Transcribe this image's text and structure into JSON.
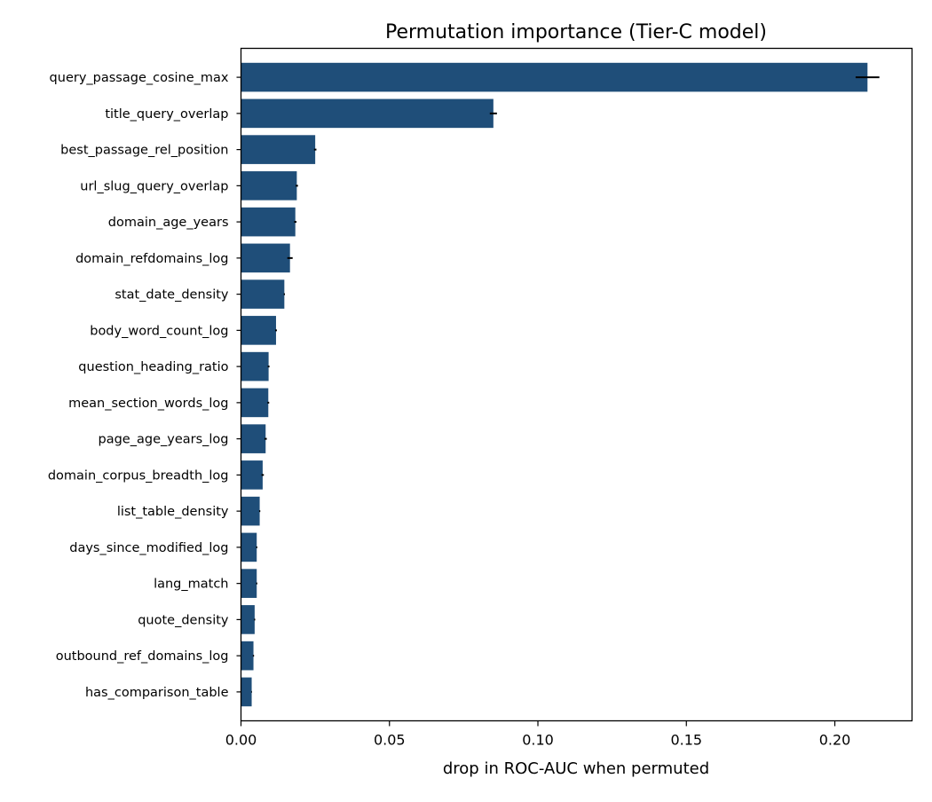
{
  "chart_data": {
    "type": "bar",
    "orientation": "horizontal",
    "title": "Permutation importance (Tier-C model)",
    "xlabel": "drop in ROC-AUC when permuted",
    "ylabel": "",
    "xlim": [
      0,
      0.226
    ],
    "xticks": [
      0.0,
      0.05,
      0.1,
      0.15,
      0.2
    ],
    "xtick_labels": [
      "0.00",
      "0.05",
      "0.10",
      "0.15",
      "0.20"
    ],
    "grid": false,
    "legend": "none",
    "bar_color": "#1f4e79",
    "error_color": "#000000",
    "categories": [
      "query_passage_cosine_max",
      "title_query_overlap",
      "best_passage_rel_position",
      "url_slug_query_overlap",
      "domain_age_years",
      "domain_refdomains_log",
      "stat_date_density",
      "body_word_count_log",
      "question_heading_ratio",
      "mean_section_words_log",
      "page_age_years_log",
      "domain_corpus_breadth_log",
      "list_table_density",
      "days_since_modified_log",
      "lang_match",
      "quote_density",
      "outbound_ref_domains_log",
      "has_comparison_table"
    ],
    "values": [
      0.211,
      0.085,
      0.025,
      0.0188,
      0.0183,
      0.0165,
      0.0146,
      0.0118,
      0.0093,
      0.0092,
      0.0083,
      0.0073,
      0.0063,
      0.0053,
      0.0053,
      0.0046,
      0.0042,
      0.0036
    ],
    "errors": [
      0.004,
      0.0012,
      0.0004,
      0.0004,
      0.0004,
      0.0009,
      0.0002,
      0.0003,
      0.0003,
      0.0003,
      0.0004,
      0.0004,
      0.0002,
      0.0002,
      0.0002,
      0.0002,
      0.0002,
      0.0001
    ]
  }
}
